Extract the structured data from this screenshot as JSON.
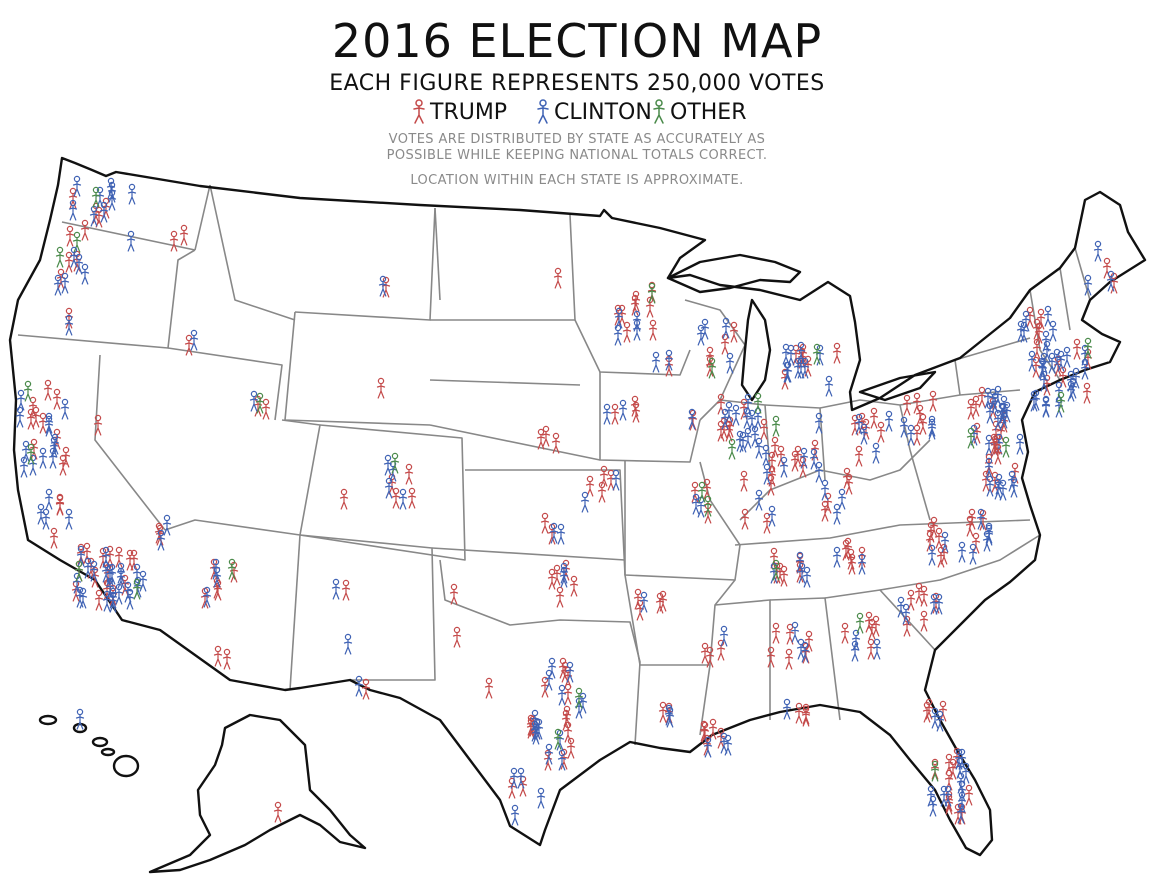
{
  "title": "2016 ELECTION MAP",
  "subtitle": "EACH FIGURE REPRESENTS 250,000 VOTES",
  "legend": [
    {
      "label": "TRUMP",
      "color": "#c44a4a"
    },
    {
      "label": "CLINTON",
      "color": "#3f62b4"
    },
    {
      "label": "OTHER",
      "color": "#4a8a4a"
    }
  ],
  "notes": {
    "line1": "VOTES ARE DISTRIBUTED BY STATE AS ACCURATELY AS",
    "line2": "POSSIBLE WHILE KEEPING NATIONAL TOTALS CORRECT.",
    "line3": "LOCATION WITHIN EACH STATE IS APPROXIMATE."
  },
  "colors": {
    "trump": "#c44a4a",
    "clinton": "#3f62b4",
    "other": "#4a8a4a",
    "outline": "#111111",
    "state_border": "#888888"
  }
}
